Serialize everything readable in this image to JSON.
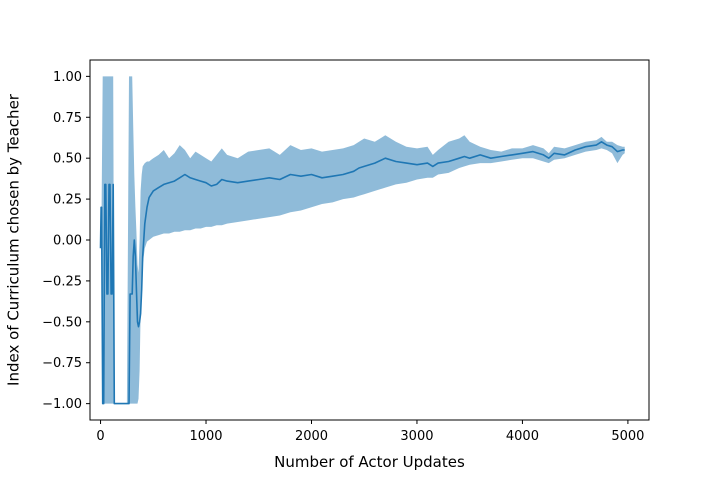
{
  "chart_data": {
    "type": "line",
    "title": "",
    "xlabel": "Number of Actor Updates",
    "ylabel": "Index of Curriculum chosen by Teacher",
    "xlim": [
      -100,
      5200
    ],
    "ylim": [
      -1.1,
      1.1
    ],
    "xticks": [
      0,
      1000,
      2000,
      3000,
      4000,
      5000
    ],
    "xtick_labels": [
      "0",
      "1000",
      "2000",
      "3000",
      "4000",
      "5000"
    ],
    "yticks": [
      1.0,
      0.75,
      0.5,
      0.25,
      0.0,
      -0.25,
      -0.5,
      -0.75,
      -1.0
    ],
    "ytick_labels": [
      "1.00",
      "0.75",
      "0.50",
      "0.25",
      "0.00",
      "−0.25",
      "−0.50",
      "−0.75",
      "−1.00"
    ],
    "grid": false,
    "legend": "none",
    "colors": {
      "line": "#1f77b4",
      "band": "#1f77b4",
      "band_opacity": 0.5,
      "axes": "#000000"
    },
    "series": [
      {
        "x": [
          0,
          5,
          10,
          20,
          30,
          40,
          50,
          60,
          70,
          80,
          90,
          100,
          110,
          120,
          130,
          150,
          170,
          190,
          210,
          230,
          250,
          270,
          280,
          290,
          300,
          310,
          320,
          330,
          340,
          350,
          360,
          370,
          380,
          390,
          400,
          420,
          440,
          460,
          480,
          500,
          550,
          600,
          650,
          700,
          750,
          800,
          850,
          900,
          950,
          1000,
          1050,
          1100,
          1150,
          1200,
          1300,
          1400,
          1500,
          1600,
          1700,
          1800,
          1900,
          2000,
          2100,
          2200,
          2300,
          2400,
          2450,
          2500,
          2600,
          2700,
          2800,
          2900,
          3000,
          3100,
          3150,
          3200,
          3300,
          3400,
          3450,
          3500,
          3600,
          3700,
          3800,
          3900,
          4000,
          4100,
          4200,
          4250,
          4300,
          4400,
          4500,
          4600,
          4700,
          4750,
          4800,
          4850,
          4900,
          4950,
          4970
        ],
        "y": [
          -0.05,
          0.2,
          0.2,
          -1.0,
          -1.0,
          0.34,
          0.34,
          -0.33,
          -0.33,
          0.34,
          0.34,
          -0.33,
          -0.33,
          0.34,
          -1.0,
          -1.0,
          -1.0,
          -1.0,
          -1.0,
          -1.0,
          -1.0,
          -1.0,
          -0.33,
          -0.33,
          -0.33,
          -0.1,
          0.0,
          -0.1,
          -0.3,
          -0.5,
          -0.53,
          -0.5,
          -0.45,
          -0.3,
          -0.1,
          0.1,
          0.2,
          0.26,
          0.28,
          0.3,
          0.32,
          0.34,
          0.35,
          0.36,
          0.38,
          0.4,
          0.38,
          0.37,
          0.36,
          0.35,
          0.33,
          0.34,
          0.37,
          0.36,
          0.35,
          0.36,
          0.37,
          0.38,
          0.37,
          0.4,
          0.39,
          0.4,
          0.38,
          0.39,
          0.4,
          0.42,
          0.44,
          0.45,
          0.47,
          0.5,
          0.48,
          0.47,
          0.46,
          0.47,
          0.45,
          0.47,
          0.48,
          0.5,
          0.51,
          0.5,
          0.52,
          0.5,
          0.51,
          0.52,
          0.53,
          0.54,
          0.52,
          0.5,
          0.53,
          0.52,
          0.55,
          0.57,
          0.58,
          0.6,
          0.58,
          0.57,
          0.54,
          0.55,
          0.55
        ],
        "lower": [
          -0.05,
          0.2,
          0.2,
          -1.0,
          -1.0,
          -1.0,
          -1.0,
          -1.0,
          -1.0,
          -1.0,
          -1.0,
          -1.0,
          -1.0,
          -1.0,
          -1.0,
          -1.0,
          -1.0,
          -1.0,
          -1.0,
          -1.0,
          -1.0,
          -1.0,
          -1.0,
          -1.0,
          -1.0,
          -1.0,
          -1.0,
          -1.0,
          -1.0,
          -1.0,
          -0.97,
          -0.8,
          -0.45,
          -0.3,
          -0.15,
          -0.05,
          -0.01,
          0.0,
          0.01,
          0.02,
          0.03,
          0.04,
          0.04,
          0.05,
          0.05,
          0.06,
          0.06,
          0.07,
          0.07,
          0.08,
          0.08,
          0.09,
          0.09,
          0.1,
          0.11,
          0.12,
          0.13,
          0.14,
          0.15,
          0.17,
          0.18,
          0.2,
          0.22,
          0.23,
          0.25,
          0.26,
          0.27,
          0.28,
          0.3,
          0.32,
          0.34,
          0.35,
          0.37,
          0.38,
          0.38,
          0.4,
          0.41,
          0.44,
          0.45,
          0.46,
          0.47,
          0.47,
          0.48,
          0.49,
          0.5,
          0.5,
          0.48,
          0.47,
          0.49,
          0.5,
          0.52,
          0.54,
          0.55,
          0.56,
          0.55,
          0.53,
          0.47,
          0.52,
          0.53
        ],
        "upper": [
          -0.05,
          0.2,
          0.2,
          1.0,
          1.0,
          1.0,
          1.0,
          1.0,
          1.0,
          1.0,
          1.0,
          1.0,
          1.0,
          1.0,
          -1.0,
          -1.0,
          -1.0,
          -1.0,
          -1.0,
          -1.0,
          -1.0,
          1.0,
          1.0,
          1.0,
          1.0,
          0.7,
          0.4,
          0.2,
          0.05,
          -0.15,
          -0.2,
          0.0,
          0.3,
          0.4,
          0.45,
          0.47,
          0.48,
          0.48,
          0.49,
          0.5,
          0.52,
          0.55,
          0.5,
          0.53,
          0.58,
          0.55,
          0.5,
          0.54,
          0.52,
          0.5,
          0.48,
          0.52,
          0.56,
          0.52,
          0.5,
          0.54,
          0.55,
          0.56,
          0.52,
          0.58,
          0.55,
          0.56,
          0.54,
          0.55,
          0.56,
          0.58,
          0.6,
          0.62,
          0.6,
          0.64,
          0.6,
          0.57,
          0.56,
          0.57,
          0.52,
          0.55,
          0.6,
          0.62,
          0.64,
          0.6,
          0.57,
          0.55,
          0.54,
          0.56,
          0.56,
          0.58,
          0.56,
          0.53,
          0.57,
          0.56,
          0.58,
          0.6,
          0.61,
          0.63,
          0.6,
          0.6,
          0.58,
          0.57,
          0.57
        ]
      }
    ]
  }
}
